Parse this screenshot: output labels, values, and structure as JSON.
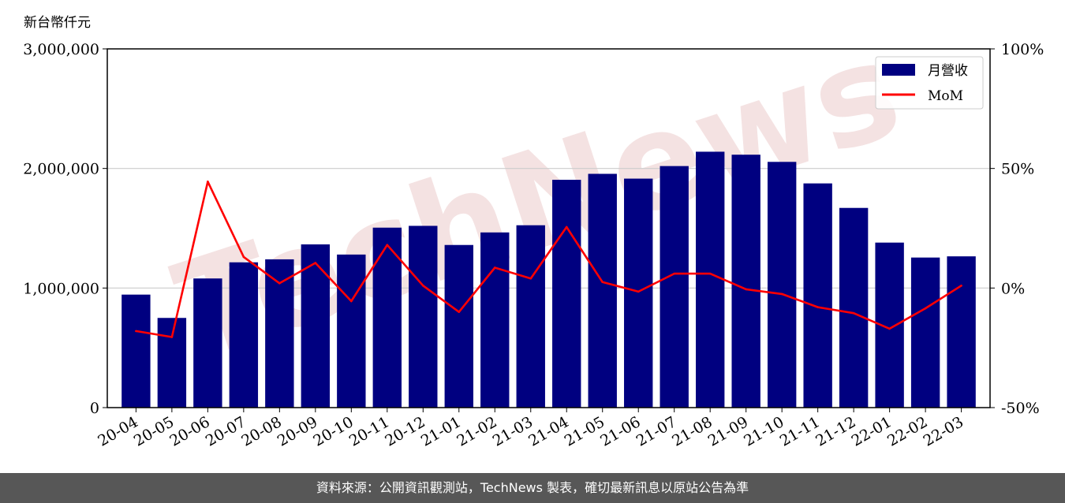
{
  "unit_label": "新台幣仟元",
  "watermark": "TechNews",
  "footer_text": "資料來源：公開資訊觀測站，TechNews 製表，確切最新訊息以原站公告為準",
  "colors": {
    "bar": "#000080",
    "line": "#ff0000",
    "grid": "#cccccc",
    "watermark": "#f3dede",
    "footer_bg": "#575757"
  },
  "chart_data": {
    "type": "bar",
    "categories": [
      "20-04",
      "20-05",
      "20-06",
      "20-07",
      "20-08",
      "20-09",
      "20-10",
      "20-11",
      "20-12",
      "21-01",
      "21-02",
      "21-03",
      "21-04",
      "21-05",
      "21-06",
      "21-07",
      "21-08",
      "21-09",
      "21-10",
      "21-11",
      "21-12",
      "22-01",
      "22-02",
      "22-03"
    ],
    "series": [
      {
        "name": "月營收",
        "type": "bar",
        "axis": "left",
        "values": [
          945000,
          750000,
          1080000,
          1215000,
          1240000,
          1365000,
          1280000,
          1505000,
          1520000,
          1360000,
          1465000,
          1525000,
          1905000,
          1955000,
          1915000,
          2020000,
          2140000,
          2115000,
          2055000,
          1875000,
          1670000,
          1380000,
          1255000,
          1265000
        ]
      },
      {
        "name": "MoM",
        "type": "line",
        "axis": "right",
        "values": [
          -18,
          -20.5,
          44.5,
          13,
          2,
          10.5,
          -5.5,
          18,
          1,
          -10,
          8.5,
          4,
          25.5,
          2.5,
          -1.5,
          6,
          6,
          -0.5,
          -2.5,
          -8,
          -10.5,
          -17,
          -8.5,
          1
        ]
      }
    ],
    "ylim_left": [
      0,
      3000000
    ],
    "yticks_left": [
      "0",
      "1,000,000",
      "2,000,000",
      "3,000,000"
    ],
    "ylim_right": [
      -50,
      100
    ],
    "yticks_right": [
      "-50%",
      "0%",
      "50%",
      "100%"
    ],
    "grid": "horizontal",
    "legend_position": "top-right"
  }
}
